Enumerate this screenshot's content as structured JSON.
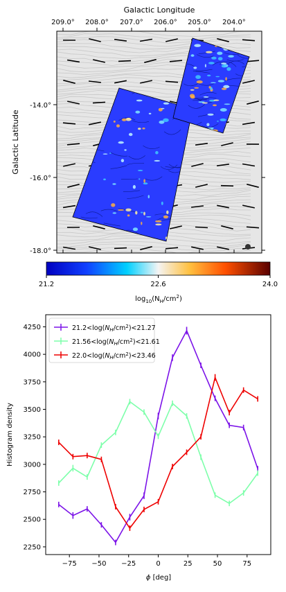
{
  "top_panel": {
    "xlabel": "Galactic Longitude",
    "ylabel": "Galactic Latitude",
    "x_ticks": [
      "209.0°",
      "208.0°",
      "207.0°",
      "206.0°",
      "205.0°",
      "204.0°"
    ],
    "y_ticks": [
      "-14.0°",
      "-16.0°",
      "-18.0°"
    ],
    "colorbar": {
      "ticks": [
        "21.2",
        "22.6",
        "24.0"
      ],
      "label_prefix": "log",
      "label_sub": "10",
      "label_main": "(N",
      "label_sub2": "H",
      "label_tail": "/cm",
      "label_sup": "2",
      "label_end": ")"
    },
    "colors": {
      "map_blue": "#2a3cff",
      "background_streamline": "#c8c8c8",
      "beam": "#333333"
    }
  },
  "chart_data": {
    "type": "line",
    "xlabel_symbol": "ϕ",
    "xlabel_unit": "[deg]",
    "ylabel": "Histogram density",
    "xlim": [
      -95,
      95
    ],
    "ylim": [
      2180,
      4360
    ],
    "x_ticks": [
      -75,
      -50,
      -25,
      0,
      25,
      50,
      75
    ],
    "y_ticks": [
      2250,
      2500,
      2750,
      3000,
      3250,
      3500,
      3750,
      4000,
      4250
    ],
    "legend_position": "upper left",
    "series": [
      {
        "name": "21.2<log(N_H/cm²)<21.27",
        "legend_parts": [
          "21.2<log(",
          "N",
          "H",
          "/cm",
          "2",
          ")<21.27"
        ],
        "color": "#7b12e8",
        "x": [
          -84,
          -72,
          -60,
          -48,
          -36,
          -24,
          -12,
          0,
          12,
          24,
          36,
          48,
          60,
          72,
          84
        ],
        "y": [
          2635,
          2535,
          2595,
          2450,
          2290,
          2520,
          2715,
          3440,
          3970,
          4215,
          3900,
          3600,
          3355,
          3335,
          2960
        ],
        "err": [
          25,
          30,
          25,
          25,
          25,
          30,
          30,
          30,
          30,
          35,
          25,
          25,
          25,
          25,
          25
        ]
      },
      {
        "name": "21.56<log(N_H/cm²)<21.61",
        "legend_parts": [
          "21.56<log(",
          "N",
          "H",
          "/cm",
          "2",
          ")<21.61"
        ],
        "color": "#7dffaa",
        "x": [
          -84,
          -72,
          -60,
          -48,
          -36,
          -24,
          -12,
          0,
          12,
          24,
          36,
          48,
          60,
          72,
          84
        ],
        "y": [
          2830,
          2965,
          2885,
          3175,
          3290,
          3570,
          3475,
          3255,
          3555,
          3440,
          3065,
          2720,
          2645,
          2740,
          2920
        ],
        "err": [
          25,
          30,
          25,
          25,
          25,
          25,
          25,
          25,
          25,
          25,
          25,
          25,
          25,
          25,
          25
        ]
      },
      {
        "name": "22.0<log(N_H/cm²)<23.46",
        "legend_parts": [
          "22.0<log(",
          "N",
          "H",
          "/cm",
          "2",
          ")<23.46"
        ],
        "color": "#ee0000",
        "x": [
          -84,
          -72,
          -60,
          -48,
          -36,
          -24,
          -12,
          0,
          12,
          24,
          36,
          48,
          60,
          72,
          84
        ],
        "y": [
          3200,
          3070,
          3080,
          3045,
          2615,
          2420,
          2590,
          2660,
          2980,
          3110,
          3250,
          3790,
          3470,
          3675,
          3595
        ],
        "err": [
          25,
          25,
          25,
          25,
          25,
          25,
          25,
          25,
          25,
          25,
          25,
          30,
          25,
          25,
          25
        ]
      }
    ]
  }
}
